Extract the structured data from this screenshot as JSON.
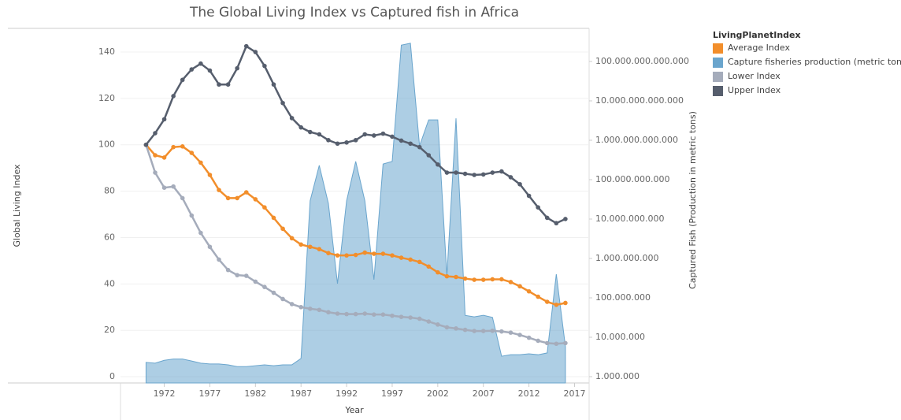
{
  "chart_data": {
    "type": "line",
    "title": "The Global Living Index vs Captured fish in Africa",
    "x_label": "Year",
    "y_label": "Global Living Index",
    "y2_label": "Captured Fish (Production in metric tons)",
    "legend_title": "LivingPlanetIndex",
    "legend_position": "right",
    "grid": true,
    "y2_log": true,
    "x": [
      1970,
      1971,
      1972,
      1973,
      1974,
      1975,
      1976,
      1977,
      1978,
      1979,
      1980,
      1981,
      1982,
      1983,
      1984,
      1985,
      1986,
      1987,
      1988,
      1989,
      1990,
      1991,
      1992,
      1993,
      1994,
      1995,
      1996,
      1997,
      1998,
      1999,
      2000,
      2001,
      2002,
      2003,
      2004,
      2005,
      2006,
      2007,
      2008,
      2009,
      2010,
      2011,
      2012,
      2013,
      2014,
      2015,
      2016
    ],
    "xlim": [
      1967.2,
      2018.6
    ],
    "xticks": [
      1972,
      1977,
      1982,
      1987,
      1992,
      1997,
      2002,
      2007,
      2012,
      2017
    ],
    "ylim": [
      -2.7,
      150.2
    ],
    "yticks": [
      0,
      20,
      40,
      60,
      80,
      100,
      120,
      140
    ],
    "y2lim": [
      691831,
      691830970918936
    ],
    "y2ticks": [
      {
        "value": 1000000,
        "label": "1.000.000"
      },
      {
        "value": 10000000,
        "label": "10.000.000"
      },
      {
        "value": 100000000,
        "label": "100.000.000"
      },
      {
        "value": 1000000000,
        "label": "1.000.000.000"
      },
      {
        "value": 10000000000,
        "label": "10.000.000.000"
      },
      {
        "value": 100000000000,
        "label": "100.000.000.000"
      },
      {
        "value": 1000000000000,
        "label": "1.000.000.000.000"
      },
      {
        "value": 10000000000000,
        "label": "10.000.000.000.000"
      },
      {
        "value": 100000000000000,
        "label": "100.000.000.000.000"
      }
    ],
    "series": [
      {
        "name": "Average Index",
        "color": "#f28e2b",
        "mark": "line",
        "values": [
          100,
          95.5,
          94.5,
          99,
          99.3,
          96.5,
          92.3,
          87,
          80.5,
          77,
          77,
          79.5,
          76.5,
          73,
          68.5,
          63.8,
          59.7,
          57,
          56,
          55,
          53.3,
          52.3,
          52.3,
          52.5,
          53.5,
          53,
          53,
          52.3,
          51.3,
          50.5,
          49.5,
          47.5,
          45,
          43.3,
          43,
          42.3,
          41.8,
          41.8,
          42,
          42,
          40.8,
          39,
          36.8,
          34.5,
          32.3,
          31,
          31.8
        ]
      },
      {
        "name": "Capture fisheries production (metric tons)",
        "color": "#6aa5cd",
        "mark": "area",
        "axis": "y2",
        "values": [
          2300000,
          2200000,
          2600000,
          2800000,
          2800000,
          2500000,
          2200000,
          2100000,
          2100000,
          2000000,
          1800000,
          1800000,
          1900000,
          2000000,
          1900000,
          2000000,
          2000000,
          2900000,
          29000000000,
          230000000000,
          25000000000,
          230000000,
          29000000000,
          290000000000,
          29000000000,
          290000000,
          250000000000,
          290000000000,
          260000000000000,
          290000000000000,
          720000000000,
          3300000000000,
          3300000000000,
          360000000,
          3600000000000,
          36000000,
          33000000,
          36000000,
          32000000,
          3300000,
          3600000,
          3600000,
          3800000,
          3600000,
          4000000,
          400000000,
          5800000
        ]
      },
      {
        "name": "Lower Index",
        "color": "#a5acbb",
        "mark": "line",
        "values": [
          100,
          88,
          81.5,
          82,
          77,
          69.5,
          62,
          56,
          50.5,
          46,
          43.8,
          43.5,
          41,
          38.7,
          36.2,
          33.5,
          31.3,
          30,
          29.3,
          28.8,
          27.8,
          27.2,
          27,
          27,
          27.2,
          26.8,
          26.8,
          26.3,
          25.8,
          25.5,
          25,
          23.8,
          22.5,
          21.3,
          20.8,
          20.2,
          19.7,
          19.7,
          19.8,
          19.5,
          19,
          18,
          16.8,
          15.5,
          14.5,
          14.2,
          14.5
        ]
      },
      {
        "name": "Upper Index",
        "color": "#565e6d",
        "mark": "line",
        "values": [
          100,
          105,
          111,
          121,
          128,
          132.5,
          135,
          132,
          126,
          126,
          133,
          142.5,
          140,
          134,
          126,
          118,
          111.5,
          107.5,
          105.5,
          104.5,
          102,
          100.5,
          101,
          102,
          104.5,
          104,
          104.8,
          103.5,
          101.8,
          100.5,
          99,
          95.5,
          91.5,
          88,
          88,
          87.5,
          87,
          87.2,
          88,
          88.5,
          86,
          83,
          78,
          73,
          68.5,
          66.2,
          68
        ]
      }
    ]
  }
}
